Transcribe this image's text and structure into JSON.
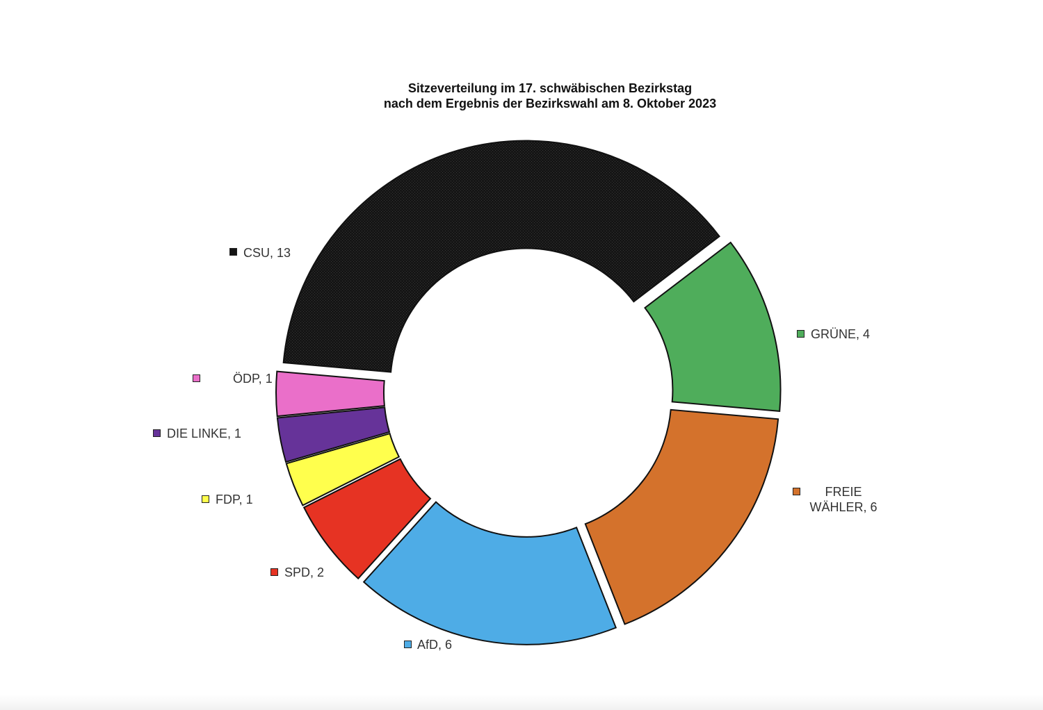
{
  "chart_data": {
    "type": "pie",
    "variant": "donut-exploded",
    "title": "Sitzeverteilung im 17. schwäbischen Bezirkstag",
    "subtitle": "nach dem Ergebnis der Bezirkswahl am 8. Oktober 2023",
    "categories": [
      "CSU",
      "GRÜNE",
      "FREIE WÄHLER",
      "AfD",
      "SPD",
      "FDP",
      "DIE LINKE",
      "ÖDP"
    ],
    "values": [
      13,
      4,
      6,
      6,
      2,
      1,
      1,
      1
    ],
    "labels": [
      "CSU, 13",
      "GRÜNE, 4",
      "FREIE WÄHLER, 6",
      "AfD, 6",
      "SPD, 2",
      "FDP, 1",
      "DIE LINKE, 1",
      "ÖDP, 1"
    ],
    "colors": [
      "#151515",
      "#4fad5b",
      "#d4722c",
      "#4eace6",
      "#e63323",
      "#ffff4d",
      "#663399",
      "#ea6fc9"
    ],
    "label_lines": {
      "fw_line1": "FREIE",
      "fw_line2": "WÄHLER, 6"
    },
    "legend": "labels-beside-slices"
  }
}
